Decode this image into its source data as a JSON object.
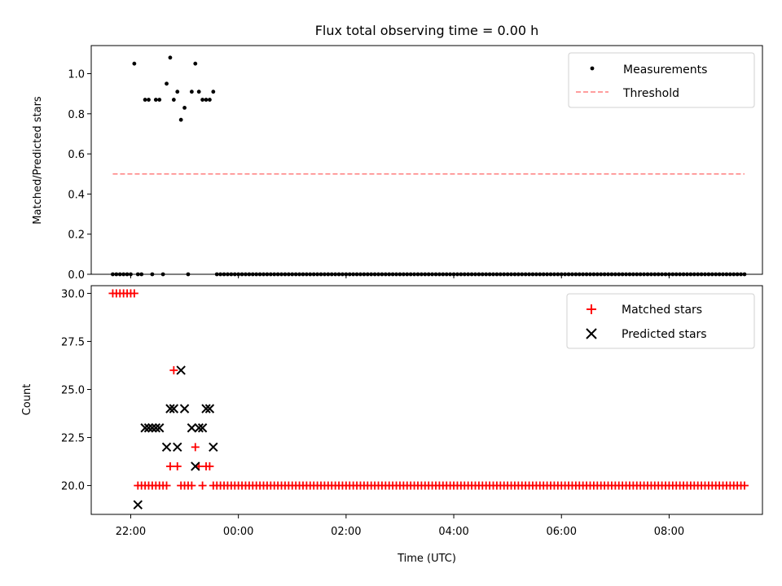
{
  "chart_data": [
    {
      "type": "scatter",
      "title": "Flux total observing time = 0.00 h",
      "xlabel": "",
      "ylabel": "Matched/Predicted stars",
      "xlim": [
        "21:16",
        "09:44"
      ],
      "ylim": [
        0,
        1.14
      ],
      "yticks": [
        "0.0",
        "0.2",
        "0.4",
        "0.6",
        "0.8",
        "1.0"
      ],
      "grid": false,
      "legend_position": "top-right",
      "series": [
        {
          "name": "Measurements",
          "marker": "dot",
          "color": "#000000",
          "points": [
            [
              "21:40",
              0
            ],
            [
              "21:44",
              0
            ],
            [
              "21:48",
              0
            ],
            [
              "21:52",
              0
            ],
            [
              "21:56",
              0
            ],
            [
              "22:00",
              0
            ],
            [
              "22:04",
              1.05
            ],
            [
              "22:08",
              0
            ],
            [
              "22:12",
              0
            ],
            [
              "22:16",
              0.87
            ],
            [
              "22:20",
              0.87
            ],
            [
              "22:24",
              0
            ],
            [
              "22:28",
              0.87
            ],
            [
              "22:32",
              0.87
            ],
            [
              "22:36",
              0
            ],
            [
              "22:40",
              0.95
            ],
            [
              "22:44",
              1.08
            ],
            [
              "22:48",
              0.87
            ],
            [
              "22:52",
              0.91
            ],
            [
              "22:56",
              0.77
            ],
            [
              "23:00",
              0.83
            ],
            [
              "23:04",
              0
            ],
            [
              "23:08",
              0.91
            ],
            [
              "23:12",
              1.05
            ],
            [
              "23:16",
              0.91
            ],
            [
              "23:20",
              0.87
            ],
            [
              "23:24",
              0.87
            ],
            [
              "23:28",
              0.87
            ],
            [
              "23:32",
              0.91
            ],
            {
              "from": "23:36",
              "to": "09:24",
              "every_minutes": 4,
              "value": 0
            }
          ]
        },
        {
          "name": "Threshold",
          "line_style": "dashed",
          "color": "#ff7f7f",
          "points": [
            [
              "21:40",
              0.5
            ],
            [
              "09:24",
              0.5
            ]
          ]
        }
      ]
    },
    {
      "type": "scatter",
      "title": "",
      "xlabel": "Time (UTC)",
      "ylabel": "Count",
      "xlim": [
        "21:16",
        "09:44"
      ],
      "ylim": [
        18.5,
        30.4
      ],
      "yticks": [
        "20.0",
        "22.5",
        "25.0",
        "27.5",
        "30.0"
      ],
      "xticks": [
        "22:00",
        "00:00",
        "02:00",
        "04:00",
        "06:00",
        "08:00"
      ],
      "grid": false,
      "legend_position": "top-right",
      "series": [
        {
          "name": "Matched stars",
          "marker": "plus",
          "color": "#ff0000",
          "points": [
            [
              "21:40",
              30
            ],
            [
              "21:44",
              30
            ],
            [
              "21:48",
              30
            ],
            [
              "21:52",
              30
            ],
            [
              "21:56",
              30
            ],
            [
              "22:00",
              30
            ],
            [
              "22:04",
              30
            ],
            [
              "22:08",
              20
            ],
            [
              "22:12",
              20
            ],
            [
              "22:16",
              20
            ],
            [
              "22:20",
              20
            ],
            [
              "22:24",
              20
            ],
            [
              "22:28",
              20
            ],
            [
              "22:32",
              20
            ],
            [
              "22:36",
              20
            ],
            [
              "22:40",
              20
            ],
            [
              "22:44",
              21
            ],
            [
              "22:48",
              26
            ],
            [
              "22:52",
              21
            ],
            [
              "22:56",
              20
            ],
            [
              "23:00",
              20
            ],
            [
              "23:04",
              20
            ],
            [
              "23:08",
              20
            ],
            [
              "23:12",
              22
            ],
            [
              "23:16",
              21
            ],
            [
              "23:20",
              20
            ],
            [
              "23:24",
              21
            ],
            [
              "23:28",
              21
            ],
            [
              "23:32",
              20
            ],
            {
              "from": "23:36",
              "to": "09:24",
              "every_minutes": 4,
              "value": 20
            }
          ]
        },
        {
          "name": "Predicted stars",
          "marker": "x",
          "color": "#000000",
          "points": [
            [
              "22:08",
              19
            ],
            [
              "22:16",
              23
            ],
            [
              "22:20",
              23
            ],
            [
              "22:24",
              23
            ],
            [
              "22:28",
              23
            ],
            [
              "22:32",
              23
            ],
            [
              "22:40",
              22
            ],
            [
              "22:44",
              24
            ],
            [
              "22:48",
              24
            ],
            [
              "22:52",
              22
            ],
            [
              "22:56",
              26
            ],
            [
              "23:00",
              24
            ],
            [
              "23:08",
              23
            ],
            [
              "23:12",
              21
            ],
            [
              "23:16",
              23
            ],
            [
              "23:20",
              23
            ],
            [
              "23:24",
              24
            ],
            [
              "23:28",
              24
            ],
            [
              "23:32",
              22
            ]
          ]
        }
      ]
    }
  ]
}
